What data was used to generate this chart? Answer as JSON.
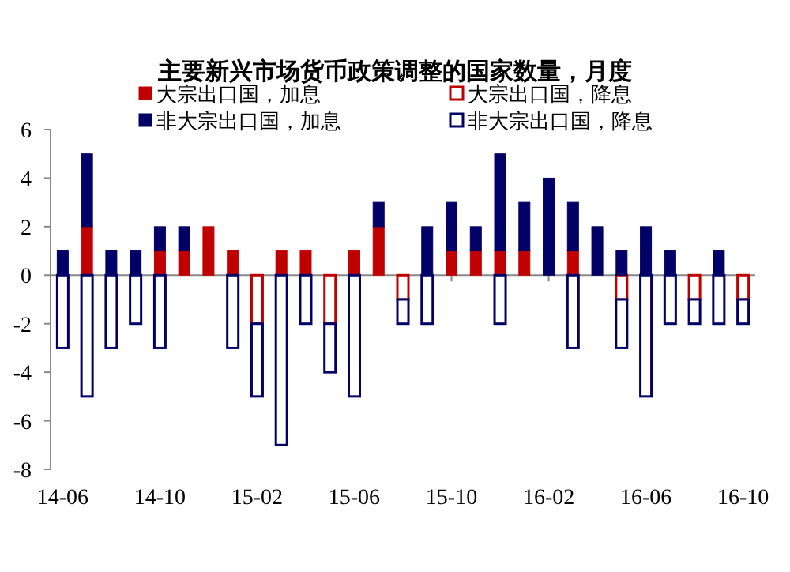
{
  "chart_data": {
    "type": "bar",
    "stacked": true,
    "title": "主要新兴市场货币政策调整的国家数量，月度",
    "categories": [
      "14-06",
      null,
      null,
      null,
      "14-10",
      null,
      null,
      null,
      "15-02",
      null,
      null,
      null,
      "15-06",
      null,
      null,
      null,
      "15-10",
      null,
      null,
      null,
      "16-02",
      null,
      null,
      null,
      "16-06",
      null,
      null,
      null,
      "16-10"
    ],
    "series": [
      {
        "name": "大宗出口国，加息",
        "color": "#c00000",
        "values": [
          0,
          2,
          0,
          0,
          1,
          1,
          2,
          1,
          0,
          1,
          1,
          0,
          1,
          2,
          0,
          0,
          1,
          1,
          1,
          1,
          0,
          1,
          0,
          0,
          0,
          0,
          0,
          0,
          0
        ]
      },
      {
        "name": "大宗出口国，降息",
        "color": "#c00000",
        "values": [
          0,
          0,
          0,
          0,
          0,
          0,
          0,
          0,
          -2,
          0,
          0,
          -2,
          0,
          0,
          -1,
          0,
          0,
          0,
          0,
          0,
          0,
          0,
          0,
          -1,
          0,
          0,
          -1,
          0,
          -1
        ]
      },
      {
        "name": "非大宗出口国，加息",
        "color": "#000066",
        "values": [
          1,
          3,
          1,
          1,
          1,
          1,
          0,
          0,
          0,
          0,
          0,
          0,
          0,
          1,
          0,
          2,
          2,
          1,
          4,
          2,
          4,
          2,
          2,
          1,
          2,
          1,
          0,
          1,
          0
        ]
      },
      {
        "name": "非大宗出口国，降息",
        "color": "#000066",
        "values": [
          -3,
          -5,
          -3,
          -2,
          -3,
          0,
          0,
          -3,
          -3,
          -7,
          -2,
          -2,
          -5,
          0,
          -1,
          -2,
          0,
          0,
          -2,
          0,
          0,
          -3,
          0,
          -2,
          -5,
          -2,
          -1,
          -2,
          -1
        ]
      }
    ],
    "ylim": [
      -8,
      6
    ],
    "yticks": [
      -8,
      -6,
      -4,
      -2,
      0,
      2,
      4,
      6
    ],
    "legend": "top"
  }
}
